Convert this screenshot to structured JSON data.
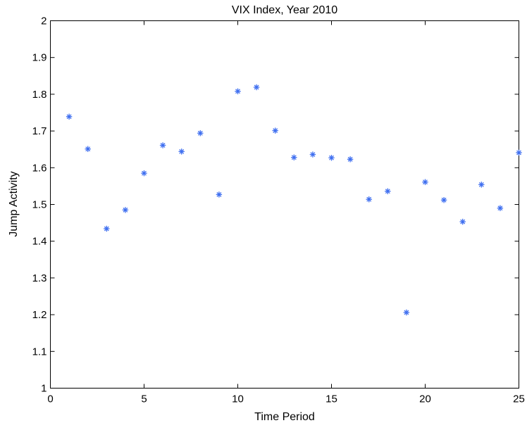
{
  "chart_data": {
    "type": "scatter",
    "title": "VIX Index, Year 2010",
    "xlabel": "Time Period",
    "ylabel": "Jump Activity",
    "xlim": [
      0,
      25
    ],
    "ylim": [
      1,
      2
    ],
    "xticks": [
      0,
      5,
      10,
      15,
      20,
      25
    ],
    "xtick_labels": [
      "0",
      "5",
      "10",
      "15",
      "20",
      "25"
    ],
    "yticks": [
      1,
      1.1,
      1.2,
      1.3,
      1.4,
      1.5,
      1.6,
      1.7,
      1.8,
      1.9,
      2
    ],
    "ytick_labels": [
      "1",
      "1.1",
      "1.2",
      "1.3",
      "1.4",
      "1.5",
      "1.6",
      "1.7",
      "1.8",
      "1.9",
      "2"
    ],
    "grid": false,
    "marker": "asterisk",
    "marker_color": "#3f6ff0",
    "series": [
      {
        "x": [
          1,
          2,
          3,
          4,
          5,
          6,
          7,
          8,
          9,
          10,
          11,
          12,
          13,
          14,
          15,
          16,
          17,
          18,
          19,
          20,
          21,
          22,
          23,
          24,
          25
        ],
        "y": [
          1.739,
          1.651,
          1.434,
          1.485,
          1.585,
          1.661,
          1.644,
          1.694,
          1.527,
          1.808,
          1.819,
          1.701,
          1.628,
          1.636,
          1.627,
          1.623,
          1.514,
          1.536,
          1.206,
          1.561,
          1.512,
          1.453,
          1.554,
          1.49,
          1.641
        ]
      }
    ]
  }
}
